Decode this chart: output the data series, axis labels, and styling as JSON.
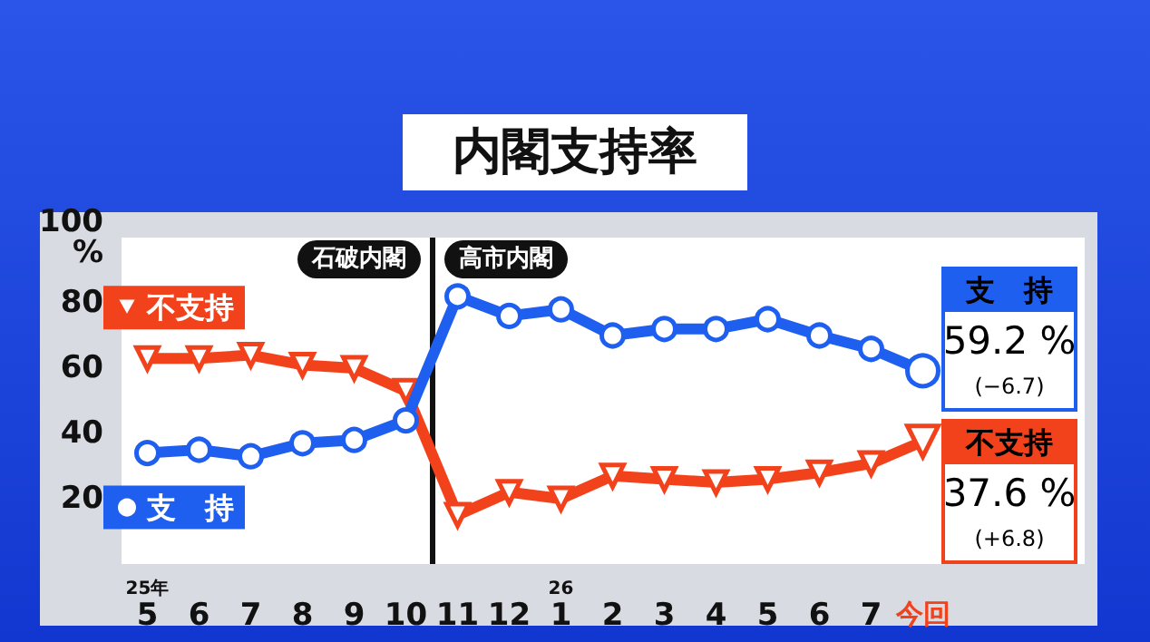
{
  "chart_data": {
    "type": "line",
    "title": "内閣支持率",
    "categories": [
      "25年\n5",
      "6",
      "7",
      "8",
      "9",
      "10",
      "11",
      "12",
      "26\n1",
      "2",
      "3",
      "4",
      "5",
      "6",
      "7",
      "今回"
    ],
    "series": [
      {
        "name": "不支持",
        "color": "#f2421c",
        "marker": "triangle",
        "values": [
          63,
          63,
          64,
          61,
          60,
          53,
          15,
          22,
          20,
          27,
          26,
          25,
          26,
          28,
          30.8,
          37.6
        ]
      },
      {
        "name": "支　持",
        "color": "#1f5ff0",
        "marker": "circle",
        "values": [
          34,
          35,
          33,
          37,
          38,
          44,
          82,
          76,
          78,
          70,
          72,
          72,
          75,
          70,
          65.9,
          59.2
        ]
      }
    ],
    "ylim": [
      0,
      100
    ],
    "yticks": [
      20,
      40,
      60,
      80,
      {
        "value": 100,
        "label": "100\n%"
      }
    ],
    "annotations": [
      "石破内閣",
      "高市内閣",
      "支　持\n59.2 %\n(−6.7)",
      "不支持\n37.6 %\n(+6.8)"
    ],
    "legend": "left",
    "line_style": "solid"
  }
}
